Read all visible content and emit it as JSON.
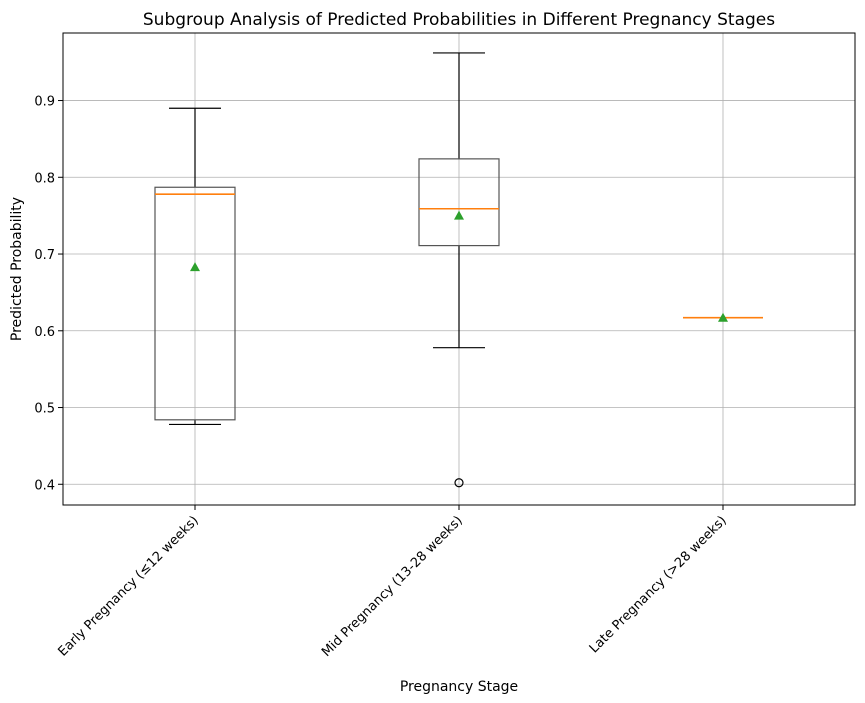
{
  "chart_data": {
    "type": "boxplot",
    "title": "Subgroup Analysis of Predicted Probabilities in Different Pregnancy Stages",
    "xlabel": "Pregnancy Stage",
    "ylabel": "Predicted Probability",
    "ylim": [
      0.373,
      0.988
    ],
    "yticks": [
      0.4,
      0.5,
      0.6,
      0.7,
      0.8,
      0.9
    ],
    "ytick_labels": [
      "0.4",
      "0.5",
      "0.6",
      "0.7",
      "0.8",
      "0.9"
    ],
    "grid": true,
    "categories": [
      "Early Pregnancy (≤12 weeks)",
      "Mid Pregnancy (13-28 weeks)",
      "Late Pregnancy (>28 weeks)"
    ],
    "boxes": [
      {
        "whisker_low": 0.478,
        "q1": 0.484,
        "median": 0.778,
        "q3": 0.787,
        "whisker_high": 0.89,
        "mean": 0.683,
        "fliers": []
      },
      {
        "whisker_low": 0.578,
        "q1": 0.711,
        "median": 0.759,
        "q3": 0.824,
        "whisker_high": 0.962,
        "mean": 0.75,
        "fliers": [
          0.402
        ]
      },
      {
        "whisker_low": 0.617,
        "q1": 0.617,
        "median": 0.617,
        "q3": 0.617,
        "whisker_high": 0.617,
        "mean": 0.617,
        "fliers": []
      }
    ],
    "colors": {
      "median": "#ff7f0e",
      "mean": "#2ca02c",
      "box": "#555555",
      "grid": "#b0b0b0"
    }
  }
}
